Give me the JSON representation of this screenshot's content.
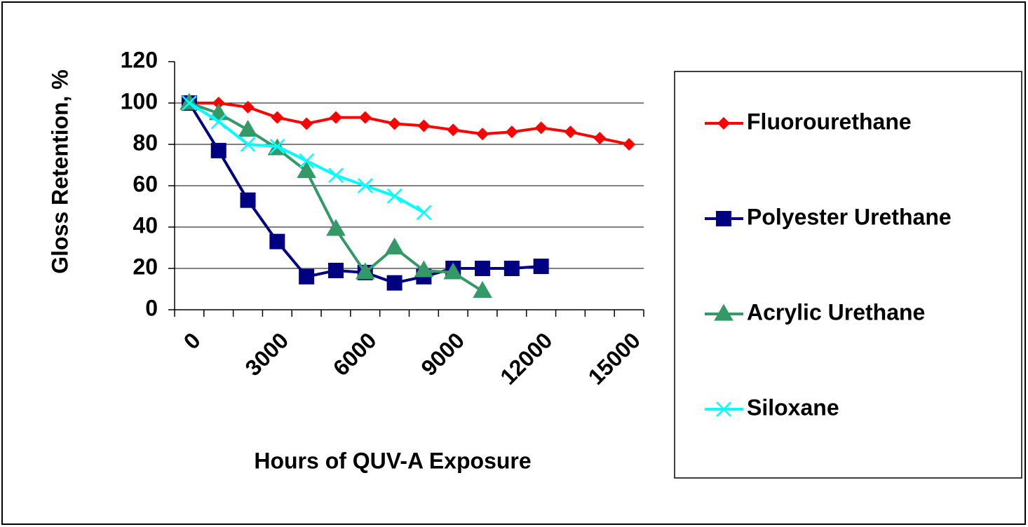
{
  "chart_data": {
    "type": "line",
    "x_label": "Hours of QUV-A Exposure",
    "y_label": "Gloss Retention, %",
    "categories": [
      0,
      null,
      null,
      3000,
      null,
      null,
      6000,
      null,
      null,
      9000,
      null,
      null,
      12000,
      null,
      null,
      15000
    ],
    "series": [
      {
        "name": "Fluorourethane",
        "color": "#ff0000",
        "marker": "diamond",
        "values": [
          100,
          100,
          98,
          93,
          90,
          93,
          93,
          90,
          89,
          87,
          85,
          86,
          88,
          86,
          83,
          80
        ]
      },
      {
        "name": "Polyester Urethane",
        "color": "#000080",
        "marker": "square",
        "values": [
          100,
          77,
          53,
          33,
          16,
          19,
          18,
          13,
          16,
          20,
          20,
          20,
          21,
          null,
          null,
          null
        ]
      },
      {
        "name": "Acrylic Urethane",
        "color": "#339966",
        "marker": "triangle",
        "values": [
          100,
          95,
          87,
          78,
          67,
          39,
          18,
          30,
          19,
          18,
          9,
          null,
          null,
          null,
          null,
          null
        ]
      },
      {
        "name": "Siloxane",
        "color": "#00ffff",
        "marker": "x",
        "values": [
          100,
          91,
          80,
          79,
          72,
          65,
          60,
          55,
          47,
          null,
          null,
          null,
          null,
          null,
          null,
          null
        ]
      }
    ],
    "ylim": [
      0,
      120
    ],
    "yticks": [
      0,
      20,
      40,
      60,
      80,
      100,
      120
    ],
    "grid": true,
    "legend": "right"
  }
}
